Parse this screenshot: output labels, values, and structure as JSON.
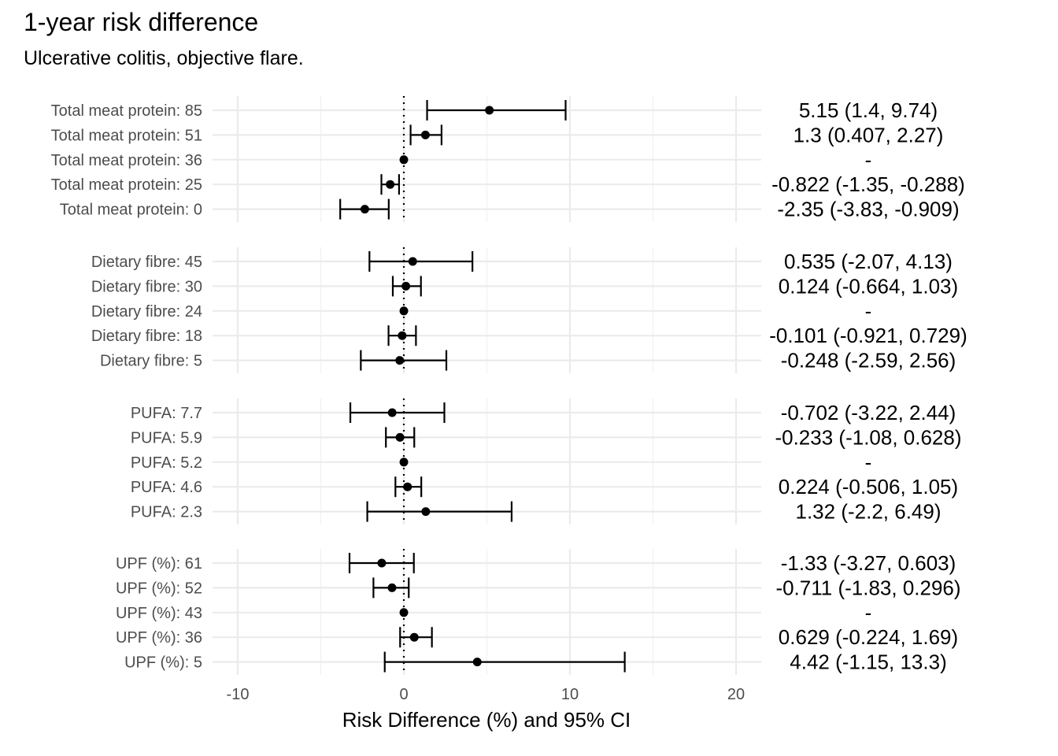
{
  "title": "1-year risk difference",
  "subtitle": "Ulcerative colitis, objective flare.",
  "chart_data": {
    "type": "forest",
    "title": "1-year risk difference",
    "subtitle": "Ulcerative colitis, objective flare.",
    "xlabel": "Risk Difference (%) and 95% CI",
    "xlim": [
      -11.5,
      21.5
    ],
    "xticks": [
      -10,
      0,
      10,
      20
    ],
    "xtick_labels": [
      "-10",
      "0",
      "10",
      "20"
    ],
    "reference_line": 0,
    "grid": true,
    "panels": [
      {
        "name": "Total meat protein",
        "rows": [
          {
            "label": "Total meat protein: 85",
            "est": 5.15,
            "lo": 1.4,
            "hi": 9.74,
            "text": "5.15 (1.4, 9.74)"
          },
          {
            "label": "Total meat protein: 51",
            "est": 1.3,
            "lo": 0.407,
            "hi": 2.27,
            "text": "1.3 (0.407, 2.27)"
          },
          {
            "label": "Total meat protein: 36",
            "est": 0,
            "lo": null,
            "hi": null,
            "text": "-"
          },
          {
            "label": "Total meat protein: 25",
            "est": -0.822,
            "lo": -1.35,
            "hi": -0.288,
            "text": "-0.822 (-1.35, -0.288)"
          },
          {
            "label": "Total meat protein: 0",
            "est": -2.35,
            "lo": -3.83,
            "hi": -0.909,
            "text": "-2.35 (-3.83, -0.909)"
          }
        ]
      },
      {
        "name": "Dietary fibre",
        "rows": [
          {
            "label": "Dietary fibre: 45",
            "est": 0.535,
            "lo": -2.07,
            "hi": 4.13,
            "text": "0.535 (-2.07, 4.13)"
          },
          {
            "label": "Dietary fibre: 30",
            "est": 0.124,
            "lo": -0.664,
            "hi": 1.03,
            "text": "0.124 (-0.664, 1.03)"
          },
          {
            "label": "Dietary fibre: 24",
            "est": 0,
            "lo": null,
            "hi": null,
            "text": "-"
          },
          {
            "label": "Dietary fibre: 18",
            "est": -0.101,
            "lo": -0.921,
            "hi": 0.729,
            "text": "-0.101 (-0.921, 0.729)"
          },
          {
            "label": "Dietary fibre: 5",
            "est": -0.248,
            "lo": -2.59,
            "hi": 2.56,
            "text": "-0.248 (-2.59, 2.56)"
          }
        ]
      },
      {
        "name": "PUFA",
        "rows": [
          {
            "label": "PUFA: 7.7",
            "est": -0.702,
            "lo": -3.22,
            "hi": 2.44,
            "text": "-0.702 (-3.22, 2.44)"
          },
          {
            "label": "PUFA: 5.9",
            "est": -0.233,
            "lo": -1.08,
            "hi": 0.628,
            "text": "-0.233 (-1.08, 0.628)"
          },
          {
            "label": "PUFA: 5.2",
            "est": 0,
            "lo": null,
            "hi": null,
            "text": "-"
          },
          {
            "label": "PUFA: 4.6",
            "est": 0.224,
            "lo": -0.506,
            "hi": 1.05,
            "text": "0.224 (-0.506, 1.05)"
          },
          {
            "label": "PUFA: 2.3",
            "est": 1.32,
            "lo": -2.2,
            "hi": 6.49,
            "text": "1.32 (-2.2, 6.49)"
          }
        ]
      },
      {
        "name": "UPF (%)",
        "rows": [
          {
            "label": "UPF (%): 61",
            "est": -1.33,
            "lo": -3.27,
            "hi": 0.603,
            "text": "-1.33 (-3.27, 0.603)"
          },
          {
            "label": "UPF (%): 52",
            "est": -0.711,
            "lo": -1.83,
            "hi": 0.296,
            "text": "-0.711 (-1.83, 0.296)"
          },
          {
            "label": "UPF (%): 43",
            "est": 0,
            "lo": null,
            "hi": null,
            "text": "-"
          },
          {
            "label": "UPF (%): 36",
            "est": 0.629,
            "lo": -0.224,
            "hi": 1.69,
            "text": "0.629 (-0.224, 1.69)"
          },
          {
            "label": "UPF (%): 5",
            "est": 4.42,
            "lo": -1.15,
            "hi": 13.3,
            "text": "4.42 (-1.15, 13.3)"
          }
        ]
      }
    ]
  }
}
